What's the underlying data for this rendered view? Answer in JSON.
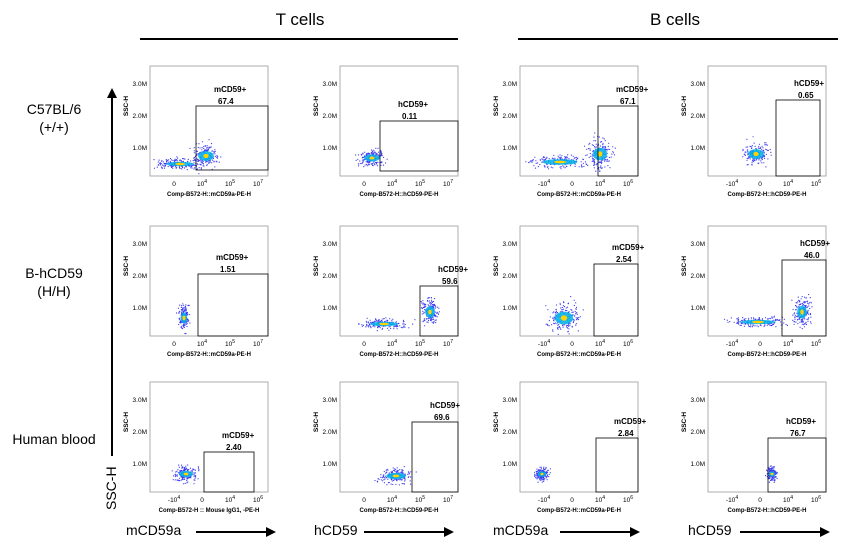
{
  "groups": [
    {
      "title": "T cells"
    },
    {
      "title": "B cells"
    }
  ],
  "rows": [
    {
      "label_line1": "C57BL/6",
      "label_line2": "(+/+)"
    },
    {
      "label_line1": "B-hCD59",
      "label_line2": "(H/H)"
    },
    {
      "label_line1": "Human blood",
      "label_line2": ""
    }
  ],
  "y_axis_label": "SSC-H",
  "x_axis_labels": [
    "mCD59a",
    "hCD59",
    "mCD59a",
    "hCD59"
  ],
  "colors": {
    "dots": "#3a3af0",
    "dense_core": "#00b4e6",
    "hot_core": "#ffd200",
    "gate": "#000000"
  },
  "chart_data": [
    {
      "type": "scatter",
      "row": 0,
      "col": 0,
      "xlabel": "Comp-B572-H::mCD59a-PE-H",
      "ylabel": "SSC-H",
      "gate_label": "mCD59+",
      "gate_value": "67.4",
      "yticks": [
        "1.0M",
        "2.0M",
        "3.0M"
      ],
      "xticks": [
        "0",
        "10^4",
        "10^5",
        "10^7"
      ]
    },
    {
      "type": "scatter",
      "row": 0,
      "col": 1,
      "xlabel": "Comp-B572-H::hCD59-PE-H",
      "ylabel": "SSC-H",
      "gate_label": "hCD59+",
      "gate_value": "0.11",
      "yticks": [
        "1.0M",
        "2.0M",
        "3.0M"
      ],
      "xticks": [
        "0",
        "10^4",
        "10^5",
        "10^7"
      ]
    },
    {
      "type": "scatter",
      "row": 0,
      "col": 2,
      "xlabel": "Comp-B572-H::mCD59a-PE-H",
      "ylabel": "SSC-H",
      "gate_label": "mCD59+",
      "gate_value": "67.1",
      "yticks": [
        "1.0M",
        "2.0M",
        "3.0M"
      ],
      "xticks": [
        "-10^4",
        "0",
        "10^4",
        "10^6"
      ]
    },
    {
      "type": "scatter",
      "row": 0,
      "col": 3,
      "xlabel": "Comp-B572-H::hCD59-PE-H",
      "ylabel": "SSC-H",
      "gate_label": "hCD59+",
      "gate_value": "0.65",
      "yticks": [
        "1.0M",
        "2.0M",
        "3.0M"
      ],
      "xticks": [
        "-10^4",
        "0",
        "10^4",
        "10^6"
      ]
    },
    {
      "type": "scatter",
      "row": 1,
      "col": 0,
      "xlabel": "Comp-B572-H::mCD59a-PE-H",
      "ylabel": "SSC-H",
      "gate_label": "mCD59+",
      "gate_value": "1.51",
      "yticks": [
        "1.0M",
        "2.0M",
        "3.0M"
      ],
      "xticks": [
        "0",
        "10^4",
        "10^5",
        "10^7"
      ]
    },
    {
      "type": "scatter",
      "row": 1,
      "col": 1,
      "xlabel": "Comp-B572-H::hCD59-PE-H",
      "ylabel": "SSC-H",
      "gate_label": "hCD59+",
      "gate_value": "59.6",
      "yticks": [
        "1.0M",
        "2.0M",
        "3.0M"
      ],
      "xticks": [
        "0",
        "10^4",
        "10^5",
        "10^7"
      ]
    },
    {
      "type": "scatter",
      "row": 1,
      "col": 2,
      "xlabel": "Comp-B572-H::mCD59a-PE-H",
      "ylabel": "SSC-H",
      "gate_label": "mCD59+",
      "gate_value": "2.54",
      "yticks": [
        "1.0M",
        "2.0M",
        "3.0M"
      ],
      "xticks": [
        "-10^4",
        "0",
        "10^4",
        "10^6"
      ]
    },
    {
      "type": "scatter",
      "row": 1,
      "col": 3,
      "xlabel": "Comp-B572-H::hCD59-PE-H",
      "ylabel": "SSC-H",
      "gate_label": "hCD59+",
      "gate_value": "46.0",
      "yticks": [
        "1.0M",
        "2.0M",
        "3.0M"
      ],
      "xticks": [
        "-10^4",
        "0",
        "10^4",
        "10^6"
      ]
    },
    {
      "type": "scatter",
      "row": 2,
      "col": 0,
      "xlabel": "Comp-B572-H :: Mouse IgG1,  -PE-H",
      "ylabel": "SSC-H",
      "gate_label": "mCD59+",
      "gate_value": "2.40",
      "yticks": [
        "1.0M",
        "2.0M",
        "3.0M"
      ],
      "xticks": [
        "-10^4",
        "0",
        "10^4",
        "10^6"
      ]
    },
    {
      "type": "scatter",
      "row": 2,
      "col": 1,
      "xlabel": "Comp-B572-H::hCD59-PE-H",
      "ylabel": "SSC-H",
      "gate_label": "hCD59+",
      "gate_value": "69.6",
      "yticks": [
        "1.0M",
        "2.0M",
        "3.0M"
      ],
      "xticks": [
        "0",
        "10^4",
        "10^5",
        "10^7"
      ]
    },
    {
      "type": "scatter",
      "row": 2,
      "col": 2,
      "xlabel": "Comp-B572-H::mCD59a-PE-H",
      "ylabel": "SSC-H",
      "gate_label": "mCD59+",
      "gate_value": "2.84",
      "yticks": [
        "1.0M",
        "2.0M",
        "3.0M"
      ],
      "xticks": [
        "-10^4",
        "0",
        "10^4",
        "10^6"
      ]
    },
    {
      "type": "scatter",
      "row": 2,
      "col": 3,
      "xlabel": "Comp-B572-H::hCD59-PE-H",
      "ylabel": "SSC-H",
      "gate_label": "hCD59+",
      "gate_value": "76.7",
      "yticks": [
        "1.0M",
        "2.0M",
        "3.0M"
      ],
      "xticks": [
        "-10^4",
        "0",
        "10^4",
        "10^6"
      ]
    }
  ]
}
